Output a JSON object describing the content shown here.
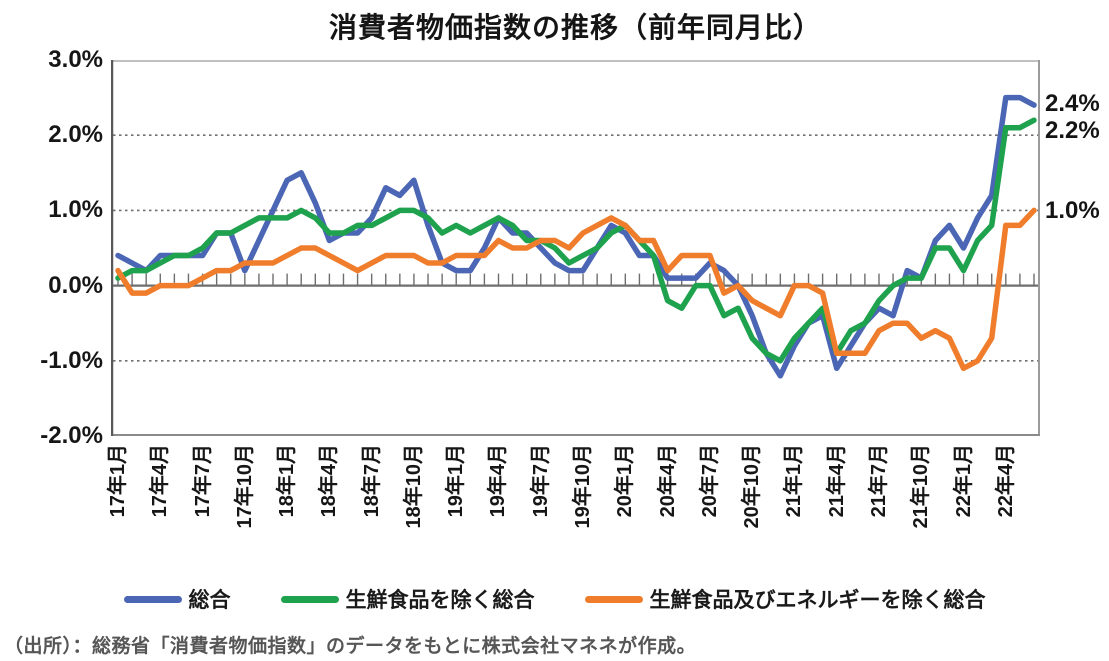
{
  "title": "消費者物価指数の推移（前年同月比）",
  "source_note": "（出所）：総務省「消費者物価指数」のデータをもとに株式会社マネネが作成。",
  "chart_data": {
    "type": "line",
    "title": "消費者物価指数の推移（前年同月比）",
    "xlabel": "",
    "ylabel": "",
    "ylim": [
      -2.0,
      3.0
    ],
    "grid": "dotted horizontal gridlines at 2.0, 1.0, -1.0; solid zero line with monthly ticks",
    "legend_position": "bottom",
    "y_ticks": [
      {
        "label": "3.0%",
        "value": 3.0
      },
      {
        "label": "2.0%",
        "value": 2.0
      },
      {
        "label": "1.0%",
        "value": 1.0
      },
      {
        "label": "0.0%",
        "value": 0.0
      },
      {
        "label": "-1.0%",
        "value": -1.0
      },
      {
        "label": "-2.0%",
        "value": -2.0
      }
    ],
    "dotted_gridline_values": [
      2.0,
      1.0,
      -1.0
    ],
    "x_tick_labels": [
      "17年1月",
      "17年4月",
      "17年7月",
      "17年10月",
      "18年1月",
      "18年4月",
      "18年7月",
      "18年10月",
      "19年1月",
      "19年4月",
      "19年7月",
      "19年10月",
      "20年1月",
      "20年4月",
      "20年7月",
      "20年10月",
      "21年1月",
      "21年4月",
      "21年7月",
      "21年10月",
      "22年1月",
      "22年4月"
    ],
    "x_tick_every_n_months": 3,
    "x_range_months": "2017-01 to 2022-06",
    "series": [
      {
        "name": "総合",
        "color": "#4B66B4",
        "values": [
          0.4,
          0.3,
          0.2,
          0.4,
          0.4,
          0.4,
          0.4,
          0.7,
          0.7,
          0.2,
          0.6,
          1.0,
          1.4,
          1.5,
          1.1,
          0.6,
          0.7,
          0.7,
          0.9,
          1.3,
          1.2,
          1.4,
          0.8,
          0.3,
          0.2,
          0.2,
          0.5,
          0.9,
          0.7,
          0.7,
          0.5,
          0.3,
          0.2,
          0.2,
          0.5,
          0.8,
          0.7,
          0.4,
          0.4,
          0.1,
          0.1,
          0.1,
          0.3,
          0.2,
          0.0,
          -0.4,
          -0.9,
          -1.2,
          -0.8,
          -0.5,
          -0.4,
          -1.1,
          -0.8,
          -0.5,
          -0.3,
          -0.4,
          0.2,
          0.1,
          0.6,
          0.8,
          0.5,
          0.9,
          1.2,
          2.5,
          2.5,
          2.4
        ]
      },
      {
        "name": "生鮮食品を除く総合",
        "color": "#1FA24D",
        "values": [
          0.1,
          0.2,
          0.2,
          0.3,
          0.4,
          0.4,
          0.5,
          0.7,
          0.7,
          0.8,
          0.9,
          0.9,
          0.9,
          1.0,
          0.9,
          0.7,
          0.7,
          0.8,
          0.8,
          0.9,
          1.0,
          1.0,
          0.9,
          0.7,
          0.8,
          0.7,
          0.8,
          0.9,
          0.8,
          0.6,
          0.6,
          0.5,
          0.3,
          0.4,
          0.5,
          0.7,
          0.8,
          0.6,
          0.4,
          -0.2,
          -0.3,
          0.0,
          0.0,
          -0.4,
          -0.3,
          -0.7,
          -0.9,
          -1.0,
          -0.7,
          -0.5,
          -0.3,
          -0.9,
          -0.6,
          -0.5,
          -0.2,
          0.0,
          0.1,
          0.1,
          0.5,
          0.5,
          0.2,
          0.6,
          0.8,
          2.1,
          2.1,
          2.2
        ]
      },
      {
        "name": "生鮮食品及びエネルギーを除く総合",
        "color": "#EF7D2B",
        "values": [
          0.2,
          -0.1,
          -0.1,
          0.0,
          0.0,
          0.0,
          0.1,
          0.2,
          0.2,
          0.3,
          0.3,
          0.3,
          0.4,
          0.5,
          0.5,
          0.4,
          0.3,
          0.2,
          0.3,
          0.4,
          0.4,
          0.4,
          0.3,
          0.3,
          0.4,
          0.4,
          0.4,
          0.6,
          0.5,
          0.5,
          0.6,
          0.6,
          0.5,
          0.7,
          0.8,
          0.9,
          0.8,
          0.6,
          0.6,
          0.2,
          0.4,
          0.4,
          0.4,
          -0.1,
          0.0,
          -0.2,
          -0.3,
          -0.4,
          0.0,
          0.0,
          -0.1,
          -0.9,
          -0.9,
          -0.9,
          -0.6,
          -0.5,
          -0.5,
          -0.7,
          -0.6,
          -0.7,
          -1.1,
          -1.0,
          -0.7,
          0.8,
          0.8,
          1.0
        ]
      }
    ],
    "end_annotations": [
      {
        "text": "2.4%",
        "value": 2.4,
        "dy": 0
      },
      {
        "text": "2.2%",
        "value": 2.2,
        "dy": 12
      },
      {
        "text": "1.0%",
        "value": 1.0,
        "dy": 2
      }
    ]
  }
}
